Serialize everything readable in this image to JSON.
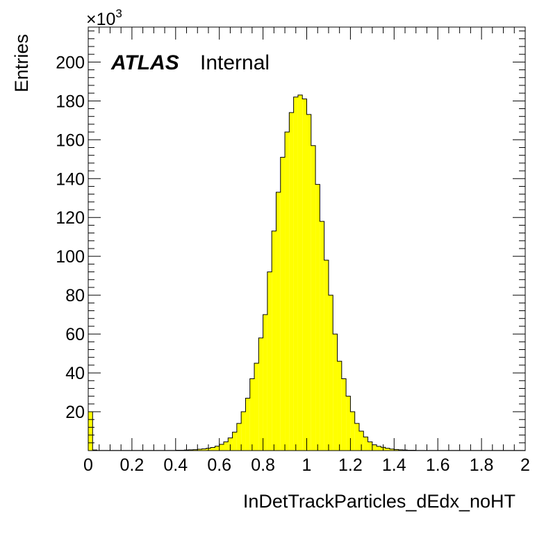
{
  "chart_data": {
    "type": "bar",
    "xlabel": "InDetTrackParticles_dEdx_noHT",
    "ylabel": "Entries",
    "y_multiplier": "×10",
    "y_multiplier_exponent": "3",
    "experiment_label": "ATLAS",
    "status_label": "Internal",
    "xlim": [
      0,
      2
    ],
    "ylim": [
      0,
      218
    ],
    "x_ticks": [
      "0",
      "0.2",
      "0.4",
      "0.6",
      "0.8",
      "1",
      "1.2",
      "1.4",
      "1.6",
      "1.8",
      "2"
    ],
    "y_ticks": [
      "20",
      "40",
      "60",
      "80",
      "100",
      "120",
      "140",
      "160",
      "180",
      "200"
    ],
    "bin_width": 0.02,
    "bin_edges_start": 0,
    "values": [
      20,
      0.3,
      0.1,
      0.1,
      0.1,
      0.1,
      0.1,
      0.1,
      0.1,
      0.1,
      0.1,
      0.1,
      0.1,
      0.1,
      0.1,
      0.1,
      0.1,
      0.1,
      0.1,
      0.1,
      0.2,
      0.2,
      0.3,
      0.4,
      0.5,
      0.7,
      0.9,
      1.2,
      1.6,
      2.3,
      3.2,
      4.5,
      6.5,
      9.5,
      14,
      20,
      27,
      37,
      45,
      58,
      70,
      92,
      113,
      133,
      151,
      164,
      174,
      182,
      183,
      181,
      173,
      157,
      137,
      118,
      98,
      80,
      60,
      46,
      37,
      28,
      20,
      14,
      10,
      7,
      4.5,
      3,
      2.2,
      1.7,
      1.2,
      0.8,
      0.6,
      0.4,
      0.3,
      0.2,
      0.2,
      0.1,
      0.1,
      0.1,
      0.1,
      0.1,
      0.1,
      0.1,
      0.1,
      0.1,
      0.1,
      0.1,
      0.1,
      0.1,
      0.1,
      0.1,
      0.1,
      0.1,
      0.1,
      0.1,
      0.1,
      0.1,
      0.1,
      0.1,
      0.1,
      0.1
    ],
    "fill_color": "#ffff00",
    "line_color": "#000000",
    "grid": false,
    "legend": "none"
  }
}
